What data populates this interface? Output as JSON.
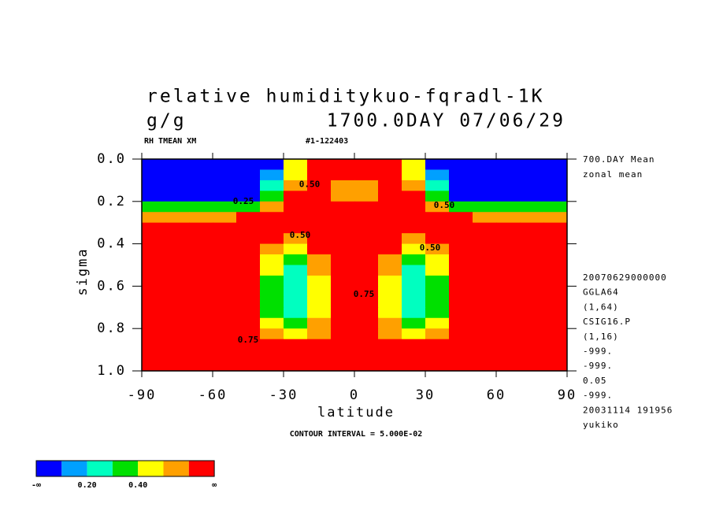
{
  "chart_data": {
    "type": "contour",
    "title": "relative humiditykuo-fqradl-1K",
    "units": "g/g",
    "time_label": "1700.0DAY 07/06/29",
    "variable_label": "RH TMEAN XM",
    "run_label": "#1-122403",
    "xlabel": "latitude",
    "ylabel": "sigma",
    "footer": "CONTOUR INTERVAL = 5.000E-02",
    "info": [
      "700.DAY Mean",
      "zonal mean"
    ],
    "meta": [
      "20070629000000",
      "GGLA64",
      "(1,64)",
      "CSIG16.P",
      "(1,16)",
      "-999.",
      "-999.",
      "0.05",
      "-999.",
      "20031114 191956",
      "yukiko"
    ],
    "xlim": [
      -90,
      90
    ],
    "xticks": [
      -90,
      -60,
      -30,
      0,
      30,
      60,
      90
    ],
    "ylim": [
      0,
      1
    ],
    "yinvert": true,
    "yticks": [
      {
        "value": 0,
        "label": "0.0"
      },
      0.2,
      0.4,
      0.6,
      0.8,
      {
        "value": 1,
        "label": "1.0"
      }
    ],
    "x": [
      -85,
      -75,
      -65,
      -55,
      -45,
      -35,
      -25,
      -15,
      -5,
      5,
      15,
      25,
      35,
      45,
      55,
      65,
      75,
      85
    ],
    "y": [
      0.025,
      0.075,
      0.125,
      0.175,
      0.225,
      0.275,
      0.325,
      0.375,
      0.425,
      0.475,
      0.525,
      0.575,
      0.625,
      0.675,
      0.725,
      0.775,
      0.825,
      0.875,
      0.925,
      0.975
    ],
    "z": [
      [
        0.05,
        0.05,
        0.05,
        0.05,
        0.05,
        0.08,
        0.4,
        0.9,
        0.9,
        0.9,
        0.9,
        0.4,
        0.08,
        0.05,
        0.05,
        0.05,
        0.05,
        0.05
      ],
      [
        0.05,
        0.05,
        0.05,
        0.05,
        0.05,
        0.15,
        0.45,
        0.8,
        0.7,
        0.7,
        0.8,
        0.45,
        0.15,
        0.05,
        0.05,
        0.05,
        0.05,
        0.05
      ],
      [
        0.05,
        0.05,
        0.05,
        0.05,
        0.05,
        0.25,
        0.55,
        0.62,
        0.58,
        0.58,
        0.62,
        0.55,
        0.25,
        0.05,
        0.05,
        0.05,
        0.05,
        0.05
      ],
      [
        0.06,
        0.06,
        0.06,
        0.06,
        0.06,
        0.35,
        0.65,
        0.65,
        0.55,
        0.55,
        0.65,
        0.65,
        0.35,
        0.06,
        0.06,
        0.06,
        0.06,
        0.06
      ],
      [
        0.35,
        0.35,
        0.35,
        0.35,
        0.35,
        0.55,
        0.7,
        0.72,
        0.65,
        0.65,
        0.72,
        0.7,
        0.55,
        0.35,
        0.35,
        0.35,
        0.35,
        0.35
      ],
      [
        0.55,
        0.55,
        0.55,
        0.55,
        0.6,
        0.7,
        0.75,
        0.75,
        0.7,
        0.7,
        0.75,
        0.75,
        0.7,
        0.6,
        0.55,
        0.55,
        0.55,
        0.55
      ],
      [
        0.7,
        0.7,
        0.7,
        0.7,
        0.7,
        0.7,
        0.65,
        0.75,
        0.75,
        0.75,
        0.75,
        0.65,
        0.7,
        0.7,
        0.7,
        0.7,
        0.7,
        0.7
      ],
      [
        0.72,
        0.72,
        0.72,
        0.72,
        0.7,
        0.6,
        0.55,
        0.65,
        0.75,
        0.75,
        0.65,
        0.55,
        0.6,
        0.7,
        0.72,
        0.72,
        0.72,
        0.72
      ],
      [
        0.72,
        0.72,
        0.72,
        0.72,
        0.68,
        0.5,
        0.45,
        0.6,
        0.75,
        0.75,
        0.6,
        0.45,
        0.5,
        0.68,
        0.72,
        0.72,
        0.72,
        0.72
      ],
      [
        0.72,
        0.72,
        0.72,
        0.72,
        0.65,
        0.45,
        0.35,
        0.55,
        0.75,
        0.75,
        0.55,
        0.35,
        0.45,
        0.65,
        0.72,
        0.72,
        0.72,
        0.72
      ],
      [
        0.72,
        0.72,
        0.72,
        0.72,
        0.65,
        0.4,
        0.28,
        0.5,
        0.72,
        0.72,
        0.5,
        0.28,
        0.4,
        0.65,
        0.72,
        0.72,
        0.72,
        0.72
      ],
      [
        0.72,
        0.72,
        0.72,
        0.72,
        0.62,
        0.38,
        0.25,
        0.45,
        0.7,
        0.7,
        0.45,
        0.25,
        0.38,
        0.62,
        0.72,
        0.72,
        0.72,
        0.72
      ],
      [
        0.72,
        0.72,
        0.72,
        0.72,
        0.62,
        0.35,
        0.22,
        0.42,
        0.7,
        0.7,
        0.42,
        0.22,
        0.35,
        0.62,
        0.72,
        0.72,
        0.72,
        0.72
      ],
      [
        0.72,
        0.72,
        0.72,
        0.72,
        0.62,
        0.35,
        0.22,
        0.42,
        0.68,
        0.68,
        0.42,
        0.22,
        0.35,
        0.62,
        0.72,
        0.72,
        0.72,
        0.72
      ],
      [
        0.72,
        0.72,
        0.72,
        0.72,
        0.62,
        0.38,
        0.25,
        0.45,
        0.68,
        0.68,
        0.45,
        0.25,
        0.38,
        0.62,
        0.72,
        0.72,
        0.72,
        0.72
      ],
      [
        0.72,
        0.72,
        0.72,
        0.72,
        0.65,
        0.45,
        0.3,
        0.5,
        0.7,
        0.7,
        0.5,
        0.3,
        0.45,
        0.65,
        0.72,
        0.72,
        0.72,
        0.72
      ],
      [
        0.75,
        0.75,
        0.75,
        0.75,
        0.7,
        0.55,
        0.45,
        0.58,
        0.7,
        0.7,
        0.58,
        0.45,
        0.55,
        0.7,
        0.75,
        0.75,
        0.75,
        0.75
      ],
      [
        0.78,
        0.78,
        0.78,
        0.78,
        0.75,
        0.65,
        0.6,
        0.62,
        0.7,
        0.7,
        0.62,
        0.6,
        0.65,
        0.75,
        0.78,
        0.78,
        0.78,
        0.78
      ],
      [
        0.82,
        0.82,
        0.82,
        0.82,
        0.8,
        0.72,
        0.72,
        0.68,
        0.7,
        0.7,
        0.68,
        0.72,
        0.72,
        0.8,
        0.82,
        0.82,
        0.82,
        0.82
      ],
      [
        0.85,
        0.85,
        0.85,
        0.85,
        0.82,
        0.78,
        0.78,
        0.75,
        0.75,
        0.75,
        0.75,
        0.78,
        0.78,
        0.82,
        0.85,
        0.85,
        0.85,
        0.85
      ]
    ],
    "levels": [
      0.1,
      0.2,
      0.3,
      0.4,
      0.5,
      0.6
    ],
    "colors": [
      "#0000ff",
      "#00a0ff",
      "#00ffc0",
      "#00e000",
      "#ffff00",
      "#ffa000",
      "#ff0000"
    ],
    "colorbar_labels": [
      "-∞",
      "0.20",
      "0.40",
      "∞"
    ],
    "contour_labels": [
      {
        "text": "0.50",
        "lat": -19,
        "sigma": 0.12
      },
      {
        "text": "0.25",
        "lat": -47,
        "sigma": 0.2
      },
      {
        "text": "0.50",
        "lat": 38,
        "sigma": 0.22
      },
      {
        "text": "0.50",
        "lat": -23,
        "sigma": 0.36
      },
      {
        "text": "0.50",
        "lat": 32,
        "sigma": 0.42
      },
      {
        "text": "0.75",
        "lat": 4,
        "sigma": 0.64
      },
      {
        "text": "0.75",
        "lat": -45,
        "sigma": 0.855
      }
    ]
  }
}
